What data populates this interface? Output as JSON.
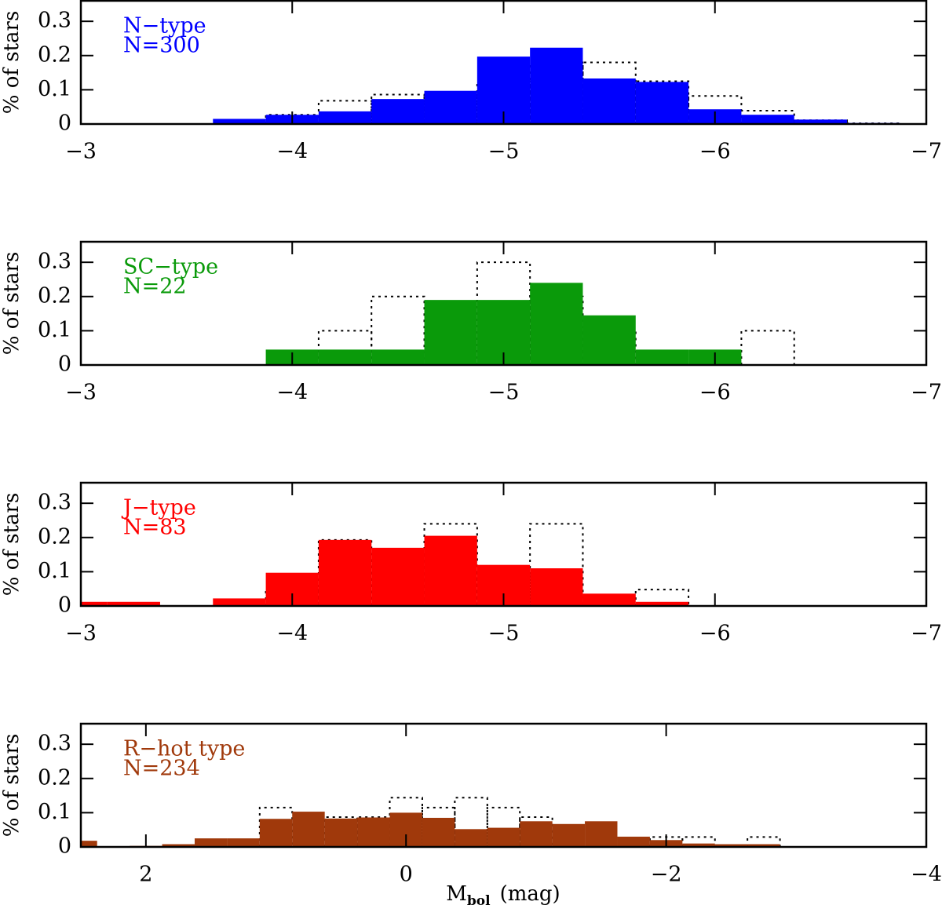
{
  "chart_data": [
    {
      "type": "histogram",
      "label": "N−type",
      "count_label": "N=300",
      "label_color": "#0000ff",
      "y_label": "% of stars",
      "bins": [
        -3.375,
        -3.625,
        -3.875,
        -4.125,
        -4.375,
        -4.625,
        -4.875,
        -5.125,
        -5.375,
        -5.625,
        -5.875,
        -6.125,
        -6.375,
        -6.625,
        -6.875
      ],
      "series": [
        {
          "color": "#0000ff",
          "style": "filled",
          "values": [
            0.002,
            0.015,
            0.027,
            0.037,
            0.073,
            0.097,
            0.197,
            0.223,
            0.133,
            0.123,
            0.043,
            0.027,
            0.013,
            0.003
          ]
        },
        {
          "color": "#000000",
          "style": "dotted",
          "values": [
            0,
            0,
            0.027,
            0.068,
            0.086,
            0.086,
            0.125,
            0.18,
            0.18,
            0.125,
            0.082,
            0.039,
            0.011,
            0.002
          ]
        }
      ],
      "xlim": [
        -3,
        -7
      ],
      "xticks": [
        {
          "value": -3,
          "label": "−3"
        },
        {
          "value": -4,
          "label": "−4"
        },
        {
          "value": -5,
          "label": "−5"
        },
        {
          "value": -6,
          "label": "−6"
        },
        {
          "value": -7,
          "label": "−7"
        }
      ],
      "ylim": [
        0,
        0.36
      ],
      "yticks": [
        0,
        0.1,
        0.2,
        0.3
      ]
    },
    {
      "type": "histogram",
      "label": "SC−type",
      "count_label": "N=22",
      "label_color": "#0a9a0a",
      "y_label": "% of stars",
      "bins": [
        -3.875,
        -4.125,
        -4.375,
        -4.625,
        -4.875,
        -5.125,
        -5.375,
        -5.625,
        -5.875,
        -6.125,
        -6.375
      ],
      "series": [
        {
          "color": "#0a9a0a",
          "style": "filled",
          "values": [
            0.045,
            0.045,
            0.045,
            0.19,
            0.19,
            0.24,
            0.145,
            0.045,
            0.045,
            0
          ]
        },
        {
          "color": "#000000",
          "style": "dotted",
          "values": [
            0,
            0.1,
            0.2,
            0,
            0.3,
            0.2,
            0.1,
            0,
            0,
            0.1
          ]
        }
      ],
      "xlim": [
        -3,
        -7
      ],
      "xticks": [
        {
          "value": -3,
          "label": "−3"
        },
        {
          "value": -4,
          "label": "−4"
        },
        {
          "value": -5,
          "label": "−5"
        },
        {
          "value": -6,
          "label": "−6"
        },
        {
          "value": -7,
          "label": "−7"
        }
      ],
      "ylim": [
        0,
        0.36
      ],
      "yticks": [
        0,
        0.1,
        0.2,
        0.3
      ]
    },
    {
      "type": "histogram",
      "label": "J−type",
      "count_label": "N=83",
      "label_color": "#ff0000",
      "y_label": "% of stars",
      "bins": [
        -2.875,
        -3.125,
        -3.375,
        -3.625,
        -3.875,
        -4.125,
        -4.375,
        -4.625,
        -4.875,
        -5.125,
        -5.375,
        -5.625,
        -5.875
      ],
      "series": [
        {
          "color": "#ff0000",
          "style": "filled",
          "values": [
            0.012,
            0.012,
            0,
            0.022,
            0.097,
            0.193,
            0.17,
            0.205,
            0.12,
            0.11,
            0.036,
            0.012
          ]
        },
        {
          "color": "#000000",
          "style": "dotted",
          "values": [
            0,
            0,
            0,
            0,
            0.048,
            0.193,
            0.145,
            0.24,
            0.096,
            0.24,
            0,
            0.048
          ]
        }
      ],
      "xlim": [
        -3,
        -7
      ],
      "xticks": [
        {
          "value": -3,
          "label": "−3"
        },
        {
          "value": -4,
          "label": "−4"
        },
        {
          "value": -5,
          "label": "−5"
        },
        {
          "value": -6,
          "label": "−6"
        },
        {
          "value": -7,
          "label": "−7"
        }
      ],
      "ylim": [
        0,
        0.36
      ],
      "yticks": [
        0,
        0.1,
        0.2,
        0.3
      ]
    },
    {
      "type": "histogram",
      "label": "R−hot type",
      "count_label": "N=234",
      "label_color": "#a0390b",
      "y_label": "% of stars",
      "x_label": "M",
      "x_label_sub": "bol",
      "x_label_unit": "(mag)",
      "bins": [
        2.625,
        2.375,
        2.125,
        1.875,
        1.625,
        1.375,
        1.125,
        0.875,
        0.625,
        0.375,
        0.125,
        -0.125,
        -0.375,
        -0.625,
        -0.875,
        -1.125,
        -1.375,
        -1.625,
        -1.875,
        -2.125,
        -2.375,
        -2.625,
        -2.875
      ],
      "series": [
        {
          "color": "#a0390b",
          "style": "filled",
          "values": [
            0.018,
            0,
            0.003,
            0.008,
            0.025,
            0.025,
            0.082,
            0.103,
            0.083,
            0.086,
            0.1,
            0.085,
            0.052,
            0.056,
            0.075,
            0.067,
            0.075,
            0.03,
            0.02,
            0.01,
            0.008,
            0.008
          ]
        },
        {
          "color": "#000000",
          "style": "dotted",
          "values": [
            0,
            0,
            0,
            0,
            0,
            0,
            0.115,
            0,
            0.087,
            0.087,
            0.144,
            0.115,
            0.144,
            0.115,
            0.087,
            0,
            0,
            0,
            0.029,
            0.029,
            0,
            0.029
          ]
        }
      ],
      "xlim": [
        2.5,
        -4
      ],
      "xticks": [
        2,
        0,
        {
          "value": -2,
          "label": "−2"
        },
        {
          "value": -4,
          "label": "−4"
        }
      ],
      "ylim": [
        0,
        0.36
      ],
      "yticks": [
        0,
        0.1,
        0.2,
        0.3
      ]
    }
  ]
}
